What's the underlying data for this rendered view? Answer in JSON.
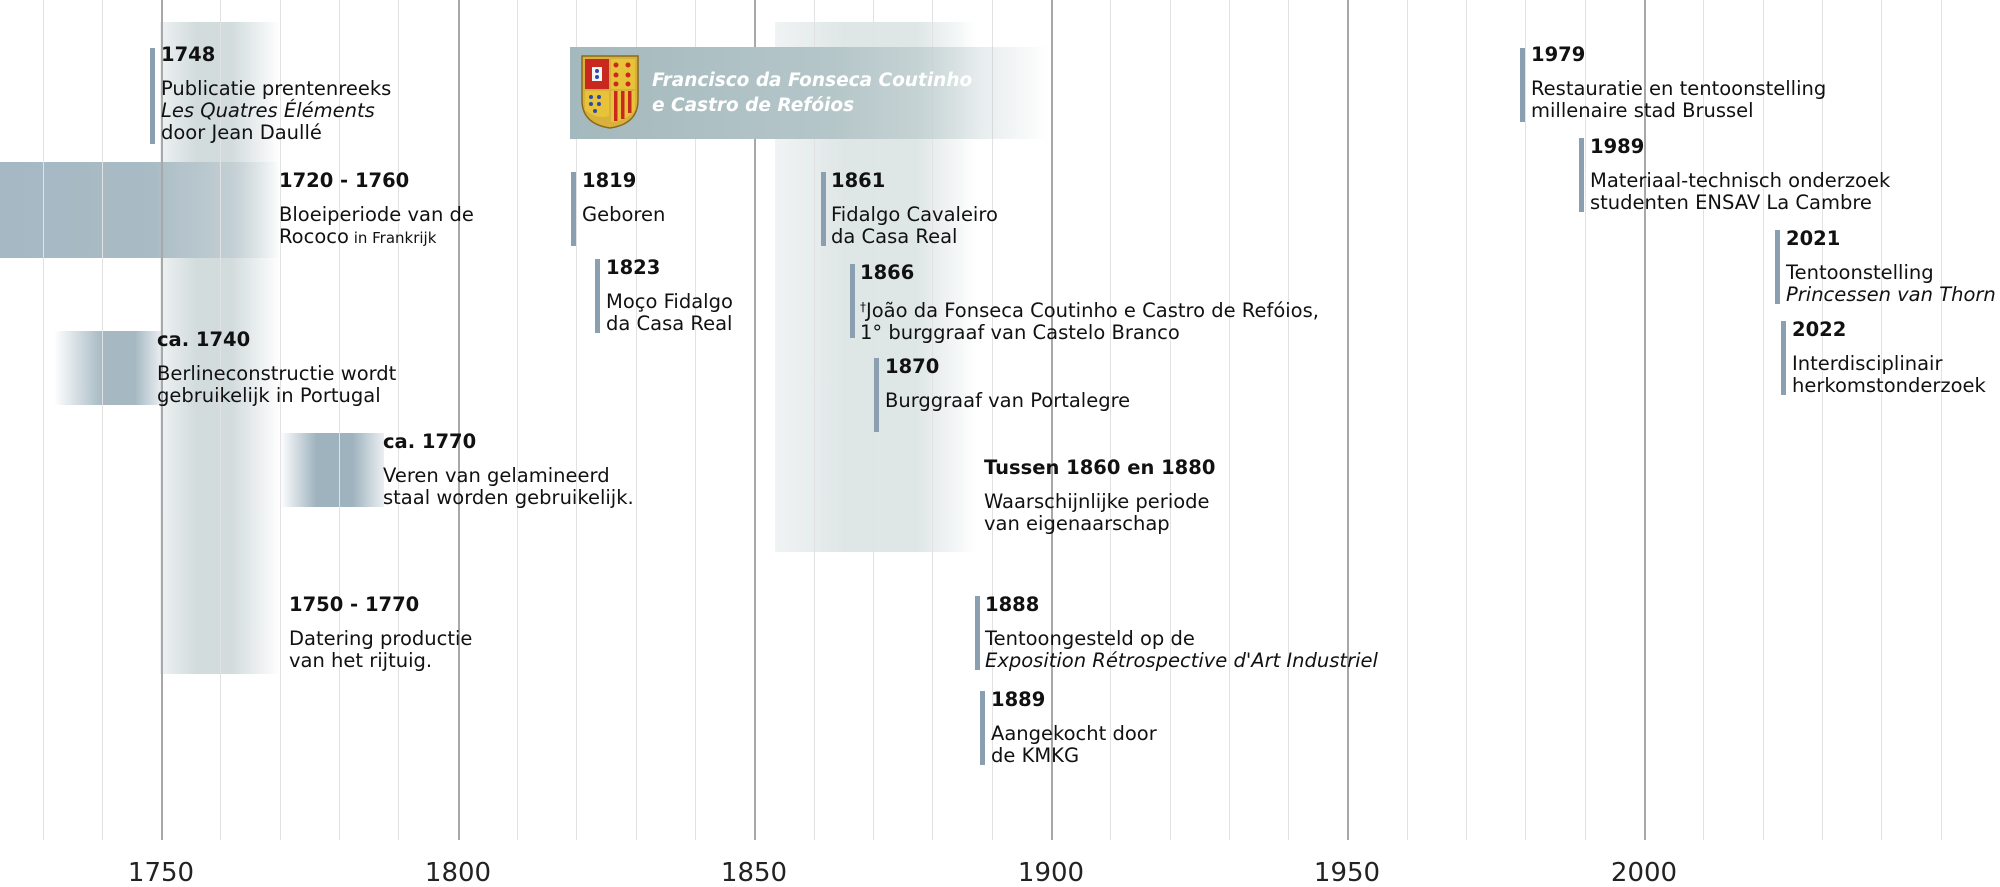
{
  "axis": {
    "ticks": [
      "1750",
      "1800",
      "1850",
      "1900",
      "1950",
      "2000"
    ]
  },
  "banner": {
    "name_line1": "Francisco da Fonseca Coutinho",
    "name_line2": "e Castro de Refóios",
    "icon": "coat-of-arms-icon"
  },
  "events": {
    "e1748": {
      "year": "1748",
      "l1": "Publicatie prentenreeks",
      "l2": "Les Quatres Éléments",
      "l3": "door Jean Daullé"
    },
    "e1720": {
      "year": "1720 - 1760",
      "l1": "Bloeiperiode van de",
      "l2a": "Rococo",
      "l2b": " in Frankrijk"
    },
    "e1740": {
      "year": "ca. 1740",
      "l1": "Berlineconstructie wordt",
      "l2": "gebruikelijk in Portugal"
    },
    "e1770": {
      "year": "ca. 1770",
      "l1": "Veren van gelamineerd",
      "l2": "staal worden gebruikelijk."
    },
    "e1750": {
      "year": "1750 - 1770",
      "l1": "Datering productie",
      "l2": "van het rijtuig."
    },
    "e1819": {
      "year": "1819",
      "l1": "Geboren"
    },
    "e1823": {
      "year": "1823",
      "l1": "Moço Fidalgo",
      "l2": "da Casa Real"
    },
    "e1861": {
      "year": "1861",
      "l1": "Fidalgo Cavaleiro",
      "l2": "da Casa Real"
    },
    "e1866": {
      "year": "1866",
      "dagger": "†",
      "l1": "João da Fonseca Coutinho e Castro de Refóios,",
      "l2": "1° burggraaf van Castelo Branco"
    },
    "e1870": {
      "year": "1870",
      "l1": "Burggraaf van Portalegre"
    },
    "e1860": {
      "year": "Tussen 1860 en 1880",
      "l1": "Waarschijnlijke periode",
      "l2": "van eigenaarschap"
    },
    "e1888": {
      "year": "1888",
      "l1": "Tentoongesteld op de",
      "l2": "Exposition Rétrospective d'Art Industriel"
    },
    "e1889": {
      "year": "1889",
      "l1": "Aangekocht door",
      "l2": "de KMKG"
    },
    "e1979": {
      "year": "1979",
      "l1": "Restauratie en tentoonstelling",
      "l2": "millenaire stad Brussel"
    },
    "e1989": {
      "year": "1989",
      "l1": "Materiaal-technisch onderzoek",
      "l2": "studenten ENSAV La Cambre"
    },
    "e2021": {
      "year": "2021",
      "l1": "Tentoonstelling",
      "l2": "Princessen van Thorn"
    },
    "e2022": {
      "year": "2022",
      "l1": "Interdisciplinair",
      "l2": "herkomstonderzoek"
    }
  },
  "colors": {
    "marker": "#8aa0b0",
    "band": "#9cb1bd",
    "band_light": "#d3dcdd",
    "banner": "#a4b9bd"
  }
}
